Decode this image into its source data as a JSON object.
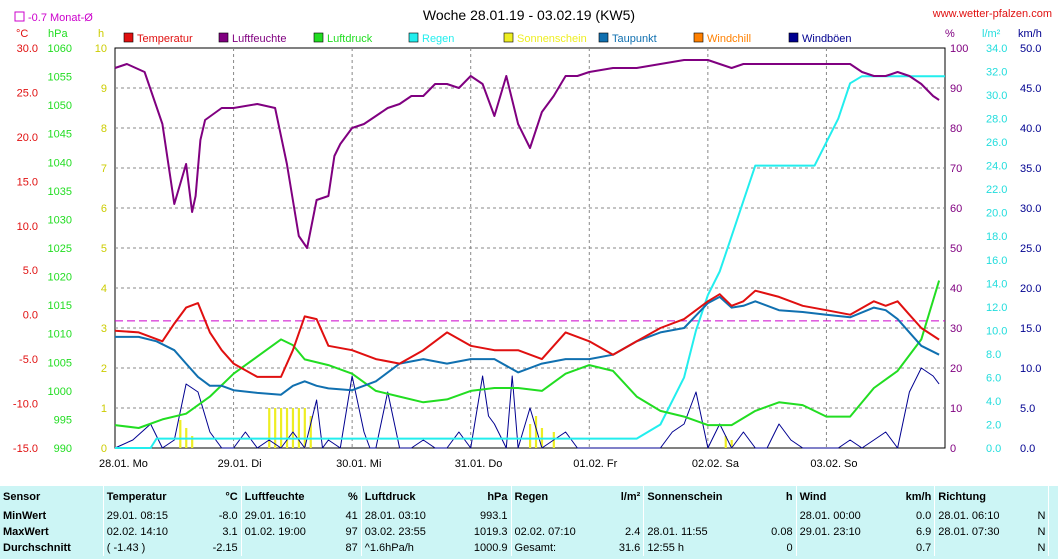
{
  "header": {
    "title": "Woche 28.01.19 - 03.02.19 (KW5)",
    "site": "www.wetter-pfalzen.com",
    "avg_note": "-0.7 Monat-Ø"
  },
  "units": {
    "temp": "°C",
    "press": "hPa",
    "sun": "h",
    "hum": "%",
    "rain": "l/m²",
    "wind": "km/h"
  },
  "colors": {
    "temp": "#e01010",
    "hum": "#800080",
    "press": "#22dd22",
    "rain": "#22eeee",
    "sun": "#eeee22",
    "dew": "#1070b0",
    "chill": "#ff8000",
    "gust": "#000090"
  },
  "legend": [
    {
      "label": "Temperatur",
      "color": "#e01010"
    },
    {
      "label": "Luftfeuchte",
      "color": "#800080"
    },
    {
      "label": "Luftdruck",
      "color": "#22dd22"
    },
    {
      "label": "Regen",
      "color": "#22eeee"
    },
    {
      "label": "Sonnenschein",
      "color": "#eeee22"
    },
    {
      "label": "Taupunkt",
      "color": "#1070b0"
    },
    {
      "label": "Windchill",
      "color": "#ff8000"
    },
    {
      "label": "Windböen",
      "color": "#000090"
    }
  ],
  "chart_data": {
    "type": "line",
    "x_labels": [
      "28.01. Mo",
      "29.01. Di",
      "30.01. Mi",
      "31.01. Do",
      "01.02. Fr",
      "02.02. Sa",
      "03.02. So"
    ],
    "x_range_days": [
      0,
      7
    ],
    "axes": {
      "temp": {
        "ticks": [
          "30.0",
          "25.0",
          "20.0",
          "15.0",
          "10.0",
          "5.0",
          "0.0",
          "-5.0",
          "-10.0",
          "-15.0"
        ],
        "range": [
          -15,
          30
        ]
      },
      "press": {
        "ticks": [
          "1060",
          "1055",
          "1050",
          "1045",
          "1040",
          "1035",
          "1030",
          "1025",
          "1020",
          "1015",
          "1010",
          "1005",
          "1000",
          "995",
          "990"
        ],
        "range": [
          990,
          1060
        ]
      },
      "sun": {
        "ticks": [
          "10",
          "9",
          "8",
          "7",
          "6",
          "5",
          "4",
          "3",
          "2",
          "1",
          "0"
        ],
        "range": [
          0,
          10
        ]
      },
      "hum": {
        "ticks": [
          "100",
          "90",
          "80",
          "70",
          "60",
          "50",
          "40",
          "30",
          "20",
          "10",
          "0"
        ],
        "range": [
          0,
          100
        ]
      },
      "rain": {
        "ticks": [
          "34.0",
          "32.0",
          "30.0",
          "28.0",
          "26.0",
          "24.0",
          "22.0",
          "20.0",
          "18.0",
          "16.0",
          "14.0",
          "12.0",
          "10.0",
          "8.0",
          "6.0",
          "4.0",
          "2.0",
          "0.0"
        ],
        "range": [
          0,
          34
        ]
      },
      "wind": {
        "ticks": [
          "50.0",
          "45.0",
          "40.0",
          "35.0",
          "30.0",
          "25.0",
          "20.0",
          "15.0",
          "10.0",
          "5.0",
          "0.0"
        ],
        "range": [
          0,
          50
        ]
      }
    },
    "month_avg_temp": -0.7,
    "series": [
      {
        "name": "Luftfeuchte",
        "axis": "hum",
        "color": "#800080",
        "x": [
          0,
          0.1,
          0.25,
          0.4,
          0.5,
          0.6,
          0.65,
          0.68,
          0.72,
          0.76,
          0.9,
          1.0,
          1.2,
          1.35,
          1.45,
          1.55,
          1.62,
          1.7,
          1.8,
          1.85,
          1.9,
          2.0,
          2.1,
          2.2,
          2.3,
          2.4,
          2.5,
          2.6,
          2.7,
          2.8,
          2.9,
          3.0,
          3.1,
          3.2,
          3.3,
          3.4,
          3.5,
          3.6,
          3.7,
          3.8,
          3.9,
          4.0,
          4.2,
          4.4,
          4.6,
          4.8,
          5.0,
          5.1,
          5.2,
          5.3,
          5.4,
          5.6,
          5.8,
          6.0,
          6.2,
          6.3,
          6.4,
          6.5,
          6.6,
          6.7,
          6.8,
          6.9,
          6.95
        ],
        "y": [
          95,
          96,
          94,
          81,
          61,
          71,
          59,
          63,
          77,
          82,
          85,
          85,
          86,
          85,
          71,
          53,
          50,
          62,
          63,
          73,
          76,
          80,
          81,
          83,
          85,
          86,
          88,
          88,
          91,
          91,
          90,
          93,
          91,
          83,
          93,
          81,
          75,
          84,
          88,
          93,
          93,
          94,
          95,
          95,
          96,
          97,
          97,
          96,
          95,
          96,
          96,
          96,
          96,
          96,
          96,
          94,
          93,
          93,
          94,
          93,
          91,
          88,
          87
        ]
      },
      {
        "name": "Regen",
        "axis": "rain",
        "color": "#22eeee",
        "x": [
          0,
          0.3,
          0.35,
          4.4,
          4.6,
          4.8,
          4.9,
          5.0,
          5.1,
          5.2,
          5.3,
          5.4,
          5.5,
          5.6,
          5.9,
          6.1,
          6.2,
          6.3,
          6.4,
          7.0
        ],
        "y": [
          0,
          0,
          0.8,
          0.8,
          2.0,
          6.0,
          10.0,
          13.0,
          15.0,
          18.0,
          21.0,
          24.0,
          24.0,
          24.0,
          24.0,
          28.0,
          31.0,
          31.6,
          31.6,
          31.6
        ]
      },
      {
        "name": "Luftdruck",
        "axis": "press",
        "color": "#22dd22",
        "x": [
          0,
          0.2,
          0.4,
          0.6,
          0.8,
          1.0,
          1.2,
          1.4,
          1.5,
          1.6,
          1.8,
          2.0,
          2.2,
          2.4,
          2.6,
          2.8,
          3.0,
          3.2,
          3.4,
          3.6,
          3.8,
          4.0,
          4.2,
          4.4,
          4.6,
          4.8,
          5.0,
          5.2,
          5.4,
          5.6,
          5.8,
          6.0,
          6.2,
          6.4,
          6.6,
          6.8,
          6.95
        ],
        "y": [
          994,
          993.5,
          995,
          996,
          999,
          1003,
          1006,
          1009,
          1008,
          1005.5,
          1004.5,
          1003,
          1000,
          999,
          998,
          998.5,
          1000,
          1000.5,
          1000.5,
          1000,
          1003,
          1004.5,
          1003.5,
          999,
          996.5,
          995.5,
          994,
          994,
          996.5,
          998,
          997.5,
          995.5,
          995.5,
          1000.5,
          1003.5,
          1009,
          1019.3
        ]
      },
      {
        "name": "Temperatur",
        "axis": "temp",
        "color": "#e01010",
        "x": [
          0,
          0.2,
          0.4,
          0.5,
          0.6,
          0.7,
          0.8,
          0.9,
          1.0,
          1.2,
          1.4,
          1.5,
          1.6,
          1.7,
          1.8,
          2.0,
          2.2,
          2.4,
          2.6,
          2.8,
          3.0,
          3.2,
          3.4,
          3.6,
          3.8,
          4.0,
          4.2,
          4.4,
          4.6,
          4.8,
          5.0,
          5.1,
          5.2,
          5.3,
          5.4,
          5.6,
          5.8,
          6.0,
          6.2,
          6.4,
          6.5,
          6.6,
          6.7,
          6.8,
          6.95
        ],
        "y": [
          -1.8,
          -2.0,
          -3.0,
          -1.0,
          0.8,
          1.3,
          -2.0,
          -4.0,
          -5.5,
          -7.0,
          -7.0,
          -4.0,
          -0.2,
          -0.5,
          -3.5,
          -4.0,
          -5.0,
          -5.5,
          -4.0,
          -2.0,
          -3.5,
          -4.0,
          -4.0,
          -5.0,
          -2.0,
          -3.0,
          -4.5,
          -3.0,
          -1.5,
          -0.5,
          1.5,
          2.3,
          1.0,
          1.5,
          2.7,
          2.0,
          1.0,
          0.5,
          0.0,
          1.5,
          1.0,
          1.5,
          0.0,
          -1.5,
          -2.8
        ]
      },
      {
        "name": "Taupunkt",
        "axis": "temp",
        "color": "#1070b0",
        "x": [
          0,
          0.2,
          0.35,
          0.5,
          0.6,
          0.7,
          0.8,
          0.9,
          1.0,
          1.2,
          1.4,
          1.5,
          1.6,
          1.7,
          1.8,
          2.0,
          2.2,
          2.4,
          2.6,
          2.8,
          3.0,
          3.2,
          3.4,
          3.6,
          3.8,
          4.0,
          4.2,
          4.4,
          4.6,
          4.8,
          5.0,
          5.1,
          5.2,
          5.3,
          5.4,
          5.6,
          5.8,
          6.0,
          6.2,
          6.4,
          6.5,
          6.6,
          6.7,
          6.8,
          6.95
        ],
        "y": [
          -2.5,
          -2.5,
          -3.0,
          -4.0,
          -5.5,
          -7.0,
          -8.0,
          -8.0,
          -8.5,
          -8.8,
          -9.0,
          -8.0,
          -7.5,
          -8.0,
          -8.3,
          -8.5,
          -7.5,
          -5.5,
          -5.0,
          -5.5,
          -5.0,
          -5.0,
          -6.5,
          -5.5,
          -5.0,
          -5.0,
          -4.5,
          -3.0,
          -2.0,
          -1.5,
          1.3,
          2.0,
          0.8,
          1.0,
          1.5,
          0.5,
          0.3,
          0.0,
          -0.3,
          0.8,
          0.5,
          -0.5,
          -2.0,
          -3.5,
          -4.5
        ]
      },
      {
        "name": "Windböen",
        "axis": "wind",
        "color": "#000090",
        "x": [
          0,
          0.15,
          0.3,
          0.4,
          0.5,
          0.6,
          0.7,
          0.8,
          0.9,
          1.0,
          1.1,
          1.2,
          1.3,
          1.4,
          1.5,
          1.6,
          1.7,
          1.75,
          1.8,
          1.9,
          2.0,
          2.1,
          2.15,
          2.2,
          2.3,
          2.4,
          2.5,
          2.6,
          2.7,
          2.8,
          2.9,
          3.0,
          3.1,
          3.15,
          3.2,
          3.3,
          3.35,
          3.4,
          3.5,
          3.6,
          3.7,
          3.8,
          3.9,
          4.0,
          4.2,
          4.4,
          4.6,
          4.7,
          4.8,
          4.9,
          5.0,
          5.1,
          5.2,
          5.3,
          5.4,
          5.5,
          5.6,
          5.7,
          5.8,
          5.9,
          6.0,
          6.1,
          6.2,
          6.3,
          6.4,
          6.5,
          6.6,
          6.7,
          6.8,
          6.9,
          6.95
        ],
        "y": [
          0,
          1,
          3,
          0,
          1,
          8,
          7,
          2,
          0,
          0,
          2,
          0,
          1,
          0,
          2,
          0,
          6,
          0,
          1,
          0,
          9,
          2,
          0,
          0,
          7,
          0,
          0,
          1,
          0,
          0,
          2,
          0,
          9,
          4,
          3,
          0,
          9,
          0,
          5,
          0,
          1,
          2,
          0,
          0,
          0,
          0,
          0,
          2,
          3,
          7,
          0,
          3,
          0,
          2,
          0,
          0,
          3,
          1,
          0,
          0,
          0,
          0,
          1,
          0,
          1,
          2,
          0,
          7,
          10,
          9,
          8
        ]
      },
      {
        "name": "Sonnenschein",
        "axis": "sun",
        "color": "#eeee22",
        "x": [
          0.55,
          0.6,
          0.65,
          1.3,
          1.35,
          1.4,
          1.45,
          1.5,
          1.55,
          1.6,
          1.65,
          3.5,
          3.55,
          3.6,
          3.7,
          5.15,
          5.2
        ],
        "y": [
          0.7,
          0.5,
          0.3,
          1.0,
          1.0,
          1.0,
          1.0,
          1.0,
          1.0,
          1.0,
          0.8,
          0.6,
          0.8,
          0.5,
          0.4,
          0.3,
          0.2
        ]
      }
    ]
  },
  "stats": {
    "headers": {
      "sensor": "Sensor",
      "temp": "Temperatur",
      "temp_u": "°C",
      "hum": "Luftfeuchte",
      "hum_u": "%",
      "press": "Luftdruck",
      "press_u": "hPa",
      "rain": "Regen",
      "rain_u": "l/m²",
      "sun": "Sonnenschein",
      "sun_u": "h",
      "wind": "Wind",
      "wind_u": "km/h",
      "dir": "Richtung"
    },
    "rows": [
      {
        "label": "MinWert",
        "temp_t": "29.01.  08:15",
        "temp_v": "-8.0",
        "hum_t": "29.01.  16:10",
        "hum_v": "41",
        "press_t": "28.01.  03:10",
        "press_v": "993.1",
        "rain_t": "",
        "rain_v": "",
        "sun_t": "",
        "sun_v": "",
        "wind_t": "28.01.  00:00",
        "wind_v": "0.0",
        "dir_t": "28.01.  06:10",
        "dir_v": "N"
      },
      {
        "label": "MaxWert",
        "temp_t": "02.02.  14:10",
        "temp_v": "3.1",
        "hum_t": "01.02.  19:00",
        "hum_v": "97",
        "press_t": "03.02.  23:55",
        "press_v": "1019.3",
        "rain_t": "02.02.  07:10",
        "rain_v": "2.4",
        "sun_t": "28.01.  11:55",
        "sun_v": "0.08",
        "wind_t": "29.01.  23:10",
        "wind_v": "6.9",
        "dir_t": "28.01.  07:30",
        "dir_v": "N"
      },
      {
        "label": "Durchschnitt",
        "temp_t": "( -1.43 )",
        "temp_v": "-2.15",
        "hum_t": "",
        "hum_v": "87",
        "press_t": "^1.6hPa/h",
        "press_v": "1000.9",
        "rain_t": "Gesamt:",
        "rain_v": "31.6",
        "sun_t": "12:55 h",
        "sun_v": "0",
        "wind_t": "",
        "wind_v": "0.7",
        "dir_t": "",
        "dir_v": "N"
      }
    ]
  }
}
